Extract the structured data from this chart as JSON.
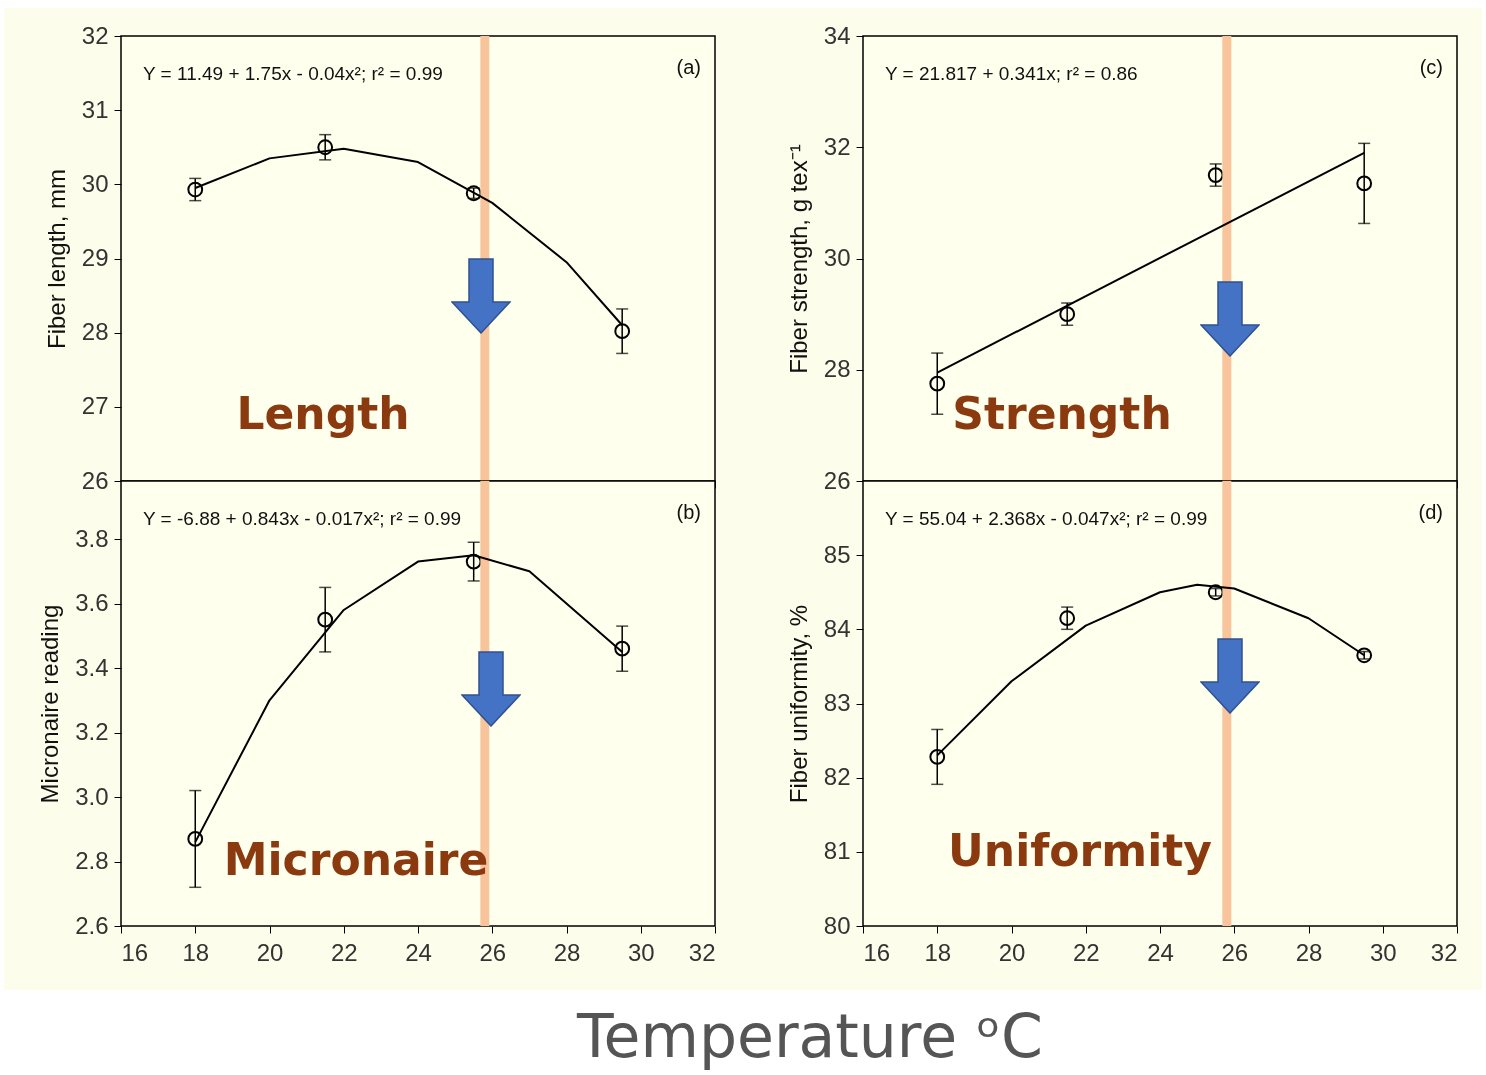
{
  "chart_data": [
    {
      "type": "scatter",
      "ylabel": "Fiber length, mm",
      "xlim": [
        16,
        32
      ],
      "xticks": [
        16,
        18,
        20,
        22,
        24,
        26,
        28,
        30,
        32
      ],
      "ylim": [
        26,
        32
      ],
      "yticks": [
        26,
        27,
        28,
        29,
        30,
        31,
        32
      ],
      "tick_labels": "y",
      "grid": false,
      "series": [
        {
          "marker": "circle",
          "color": "#000000",
          "x": [
            18,
            21.5,
            25.5,
            29.5
          ],
          "values": [
            29.93,
            30.5,
            29.88,
            28.02
          ],
          "errors": [
            0.15,
            0.17,
            0.07,
            0.3
          ]
        },
        {
          "type": "line",
          "color": "#000000",
          "x": [
            18,
            20,
            22,
            24,
            26,
            28,
            29.5
          ],
          "values": [
            29.95,
            30.35,
            30.48,
            30.3,
            29.75,
            28.95,
            28.1
          ]
        }
      ],
      "ref_lines": [
        {
          "axis": "x",
          "value": 25.8,
          "color": "#f8c49c"
        }
      ],
      "annotations": [
        "Y = 11.49 + 1.75x - 0.04x²;  r² = 0.99",
        "(a)",
        "Length"
      ]
    },
    {
      "type": "scatter",
      "ylabel": "Fiber strength, g tex⁻¹",
      "xlim": [
        16,
        32
      ],
      "xticks": [
        16,
        18,
        20,
        22,
        24,
        26,
        28,
        30,
        32
      ],
      "ylim": [
        26,
        34
      ],
      "yticks": [
        26,
        28,
        30,
        32,
        34
      ],
      "tick_labels": "y",
      "grid": false,
      "series": [
        {
          "marker": "circle",
          "color": "#000000",
          "x": [
            18,
            21.5,
            25.5,
            29.5
          ],
          "values": [
            27.75,
            29.0,
            31.5,
            31.35
          ],
          "errors": [
            0.55,
            0.2,
            0.2,
            0.72
          ]
        },
        {
          "type": "line",
          "color": "#000000",
          "x": [
            18,
            29.5
          ],
          "values": [
            27.95,
            31.9
          ]
        }
      ],
      "ref_lines": [
        {
          "axis": "x",
          "value": 25.8,
          "color": "#f8c49c"
        }
      ],
      "annotations": [
        "Y = 21.817 + 0.341x; r² = 0.86",
        "(c)",
        "Strength"
      ]
    },
    {
      "type": "scatter",
      "ylabel": "Micronaire reading",
      "xlim": [
        16,
        32
      ],
      "xticks": [
        16,
        18,
        20,
        22,
        24,
        26,
        28,
        30,
        32
      ],
      "ylim": [
        2.6,
        3.98
      ],
      "yticks": [
        {
          "value": 2.6,
          "label": "2.6"
        },
        {
          "value": 2.8,
          "label": "2.8"
        },
        {
          "value": 3.0,
          "label": "3.0"
        },
        {
          "value": 3.2,
          "label": "3.2"
        },
        {
          "value": 3.4,
          "label": "3.4"
        },
        {
          "value": 3.6,
          "label": "3.6"
        },
        {
          "value": 3.8,
          "label": "3.8"
        }
      ],
      "grid": false,
      "series": [
        {
          "marker": "circle",
          "color": "#000000",
          "x": [
            18,
            21.5,
            25.5,
            29.5
          ],
          "values": [
            2.87,
            3.55,
            3.73,
            3.46
          ],
          "errors": [
            0.15,
            0.1,
            0.06,
            0.07
          ]
        },
        {
          "type": "line",
          "color": "#000000",
          "x": [
            18,
            20,
            22,
            24,
            25.5,
            27,
            29.5
          ],
          "values": [
            2.86,
            3.3,
            3.58,
            3.73,
            3.75,
            3.7,
            3.45
          ]
        }
      ],
      "ref_lines": [
        {
          "axis": "x",
          "value": 25.8,
          "color": "#f8c49c"
        }
      ],
      "annotations": [
        "Y = -6.88 + 0.843x - 0.017x²;  r² = 0.99",
        "(b)",
        "Micronaire"
      ]
    },
    {
      "type": "scatter",
      "ylabel": "Fiber uniformity, %",
      "xlabel": "Temperature ᵒC",
      "xlim": [
        16,
        32
      ],
      "xticks": [
        16,
        18,
        20,
        22,
        24,
        26,
        28,
        30,
        32
      ],
      "ylim": [
        80,
        86
      ],
      "yticks": [
        80,
        81,
        82,
        83,
        84,
        85
      ],
      "grid": false,
      "series": [
        {
          "marker": "circle",
          "color": "#000000",
          "x": [
            18,
            21.5,
            25.5,
            29.5
          ],
          "values": [
            82.28,
            84.15,
            84.5,
            83.65
          ],
          "errors": [
            0.37,
            0.15,
            0.05,
            0.05
          ]
        },
        {
          "type": "line",
          "color": "#000000",
          "x": [
            18,
            20,
            22,
            24,
            25,
            26,
            28,
            29.5
          ],
          "values": [
            82.3,
            83.3,
            84.05,
            84.5,
            84.6,
            84.55,
            84.15,
            83.65
          ]
        }
      ],
      "ref_lines": [
        {
          "axis": "x",
          "value": 25.8,
          "color": "#f8c49c"
        }
      ],
      "annotations": [
        "Y = 55.04 + 2.368x - 0.047x²; r² = 0.99",
        "(d)",
        "Uniformity"
      ]
    }
  ]
}
